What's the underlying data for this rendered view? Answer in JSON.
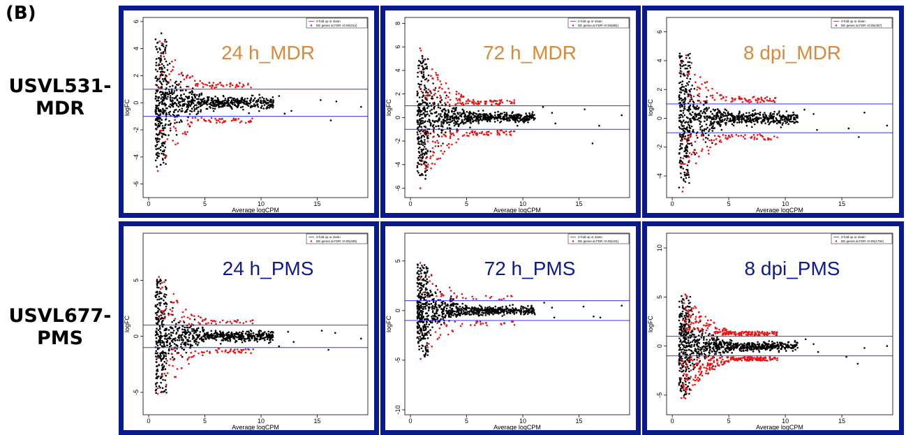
{
  "figure_label": "(B)",
  "row_labels": [
    {
      "line1": "USVL531-",
      "line2": "MDR"
    },
    {
      "line1": "USVL677-",
      "line2": "PMS"
    }
  ],
  "colors": {
    "frame": "#0a1a8c",
    "threshold_line": "#3333ee",
    "de_points": "#ee1111",
    "non_de_points": "#000000",
    "mdr_title": "#d9893a",
    "pms_title": "#0d1a8f"
  },
  "chart_data": [
    {
      "type": "scatter",
      "title": "24 h_MDR",
      "title_color": "#d9893a",
      "xlabel": "Average logCPM",
      "ylabel": "logFC",
      "xlim": [
        -0.5,
        19.5
      ],
      "ylim": [
        -7.0,
        6.3
      ],
      "xticks": [
        0,
        5,
        10,
        15
      ],
      "yticks": [
        -6,
        -4,
        -2,
        0,
        2,
        4,
        6
      ],
      "threshold_lines": [
        1,
        -1
      ],
      "legend_position": "top-right",
      "legend": [
        "2-fold up or down",
        "DE genes at FDR <0.05(314)"
      ],
      "de_count": 314,
      "grid": false,
      "outliers": [
        [
          12.1,
          -0.8
        ],
        [
          15.3,
          0.2
        ],
        [
          16.2,
          -1.3
        ],
        [
          16.7,
          0.1
        ],
        [
          18.9,
          -0.3
        ],
        [
          11.6,
          0.5
        ],
        [
          12.7,
          -0.6
        ]
      ],
      "max_spread": 5.6,
      "de_density": 1.0
    },
    {
      "type": "scatter",
      "title": "72 h_MDR",
      "title_color": "#d9893a",
      "xlabel": "Average logCPM",
      "ylabel": "logFC",
      "xlim": [
        -0.5,
        19.5
      ],
      "ylim": [
        -6.8,
        8.5
      ],
      "xticks": [
        0,
        5,
        10,
        15
      ],
      "yticks": [
        -6,
        -4,
        -2,
        0,
        2,
        4,
        6,
        8
      ],
      "threshold_lines": [
        1,
        -1
      ],
      "legend_position": "top-right",
      "legend": [
        "2-fold up or down",
        "DE genes at FDR <0.05(881)"
      ],
      "de_count": 881,
      "grid": false,
      "outliers": [
        [
          15.5,
          0.7
        ],
        [
          16.2,
          -2.2
        ],
        [
          16.8,
          -0.7
        ],
        [
          18.8,
          0.2
        ],
        [
          12.6,
          0.4
        ],
        [
          12.9,
          -0.5
        ],
        [
          11.8,
          0.9
        ]
      ],
      "max_spread": 6.2,
      "de_density": 1.6
    },
    {
      "type": "scatter",
      "title": "8 dpi_MDR",
      "title_color": "#d9893a",
      "xlabel": "Average logCPM",
      "ylabel": "logFC",
      "xlim": [
        -0.5,
        19.5
      ],
      "ylim": [
        -5.5,
        7.0
      ],
      "xticks": [
        0,
        5,
        10,
        15
      ],
      "yticks": [
        -4,
        -2,
        0,
        2,
        4,
        6
      ],
      "threshold_lines": [
        1,
        -1
      ],
      "legend_position": "top-right",
      "legend": [
        "2-fold up or down",
        "DE genes at FDR <0.05(487)"
      ],
      "de_count": 487,
      "grid": false,
      "outliers": [
        [
          15.6,
          -0.7
        ],
        [
          16.5,
          -1.3
        ],
        [
          17.0,
          0.4
        ],
        [
          19.0,
          -0.5
        ],
        [
          12.5,
          0.3
        ],
        [
          12.8,
          -0.8
        ],
        [
          11.7,
          0.6
        ]
      ],
      "max_spread": 5.3,
      "de_density": 1.2
    },
    {
      "type": "scatter",
      "title": "24 h_PMS",
      "title_color": "#0d1a8f",
      "xlabel": "Average logCPM",
      "ylabel": "logFC",
      "xlim": [
        -0.5,
        19.5
      ],
      "ylim": [
        -7.0,
        9.2
      ],
      "xticks": [
        0,
        5,
        10,
        15
      ],
      "yticks": [
        -5,
        0,
        5
      ],
      "threshold_lines": [
        1,
        -1
      ],
      "legend_position": "top-right",
      "legend": [
        "2-fold up or down",
        "DE genes at FDR <0.05(335)"
      ],
      "de_count": 335,
      "grid": false,
      "outliers": [
        [
          15.4,
          0.5
        ],
        [
          16.0,
          -1.2
        ],
        [
          16.6,
          0.3
        ],
        [
          18.9,
          -0.2
        ],
        [
          12.4,
          0.4
        ],
        [
          12.9,
          -0.5
        ],
        [
          11.6,
          -0.9
        ]
      ],
      "max_spread": 6.0,
      "de_density": 1.0
    },
    {
      "type": "scatter",
      "title": "72 h_PMS",
      "title_color": "#0d1a8f",
      "xlabel": "Average logCPM",
      "ylabel": "logFC",
      "xlim": [
        -0.5,
        19.5
      ],
      "ylim": [
        -10.5,
        7.8
      ],
      "xticks": [
        0,
        5,
        10,
        15
      ],
      "yticks": [
        -10,
        -5,
        0,
        5
      ],
      "threshold_lines": [
        1,
        -1
      ],
      "legend_position": "top-right",
      "legend": [
        "2-fold up or down",
        "DE genes at FDR <0.05(101)"
      ],
      "de_count": 101,
      "grid": false,
      "outliers": [
        [
          15.4,
          0.4
        ],
        [
          16.3,
          -0.6
        ],
        [
          16.9,
          -0.7
        ],
        [
          18.8,
          0.5
        ],
        [
          12.6,
          0.3
        ],
        [
          12.8,
          -0.7
        ],
        [
          11.9,
          0.8
        ]
      ],
      "max_spread": 5.5,
      "de_density": 0.5
    },
    {
      "type": "scatter",
      "title": "8 dpi_PMS",
      "title_color": "#0d1a8f",
      "xlabel": "Average logCPM",
      "ylabel": "logFC",
      "xlim": [
        -0.5,
        19.5
      ],
      "ylim": [
        -7.0,
        11.5
      ],
      "xticks": [
        0,
        5,
        10,
        15
      ],
      "yticks": [
        -5,
        0,
        5,
        10
      ],
      "threshold_lines": [
        1,
        -1
      ],
      "legend_position": "top-right",
      "legend": [
        "2-fold up or down",
        "DE genes at FDR <0.05(1792)"
      ],
      "de_count": 1792,
      "grid": false,
      "outliers": [
        [
          15.4,
          -1.1
        ],
        [
          16.4,
          -1.8
        ],
        [
          17.0,
          -0.2
        ],
        [
          19.0,
          0.0
        ],
        [
          12.5,
          0.2
        ],
        [
          12.9,
          -0.6
        ],
        [
          11.8,
          0.7
        ]
      ],
      "max_spread": 6.0,
      "de_density": 3.0
    }
  ]
}
